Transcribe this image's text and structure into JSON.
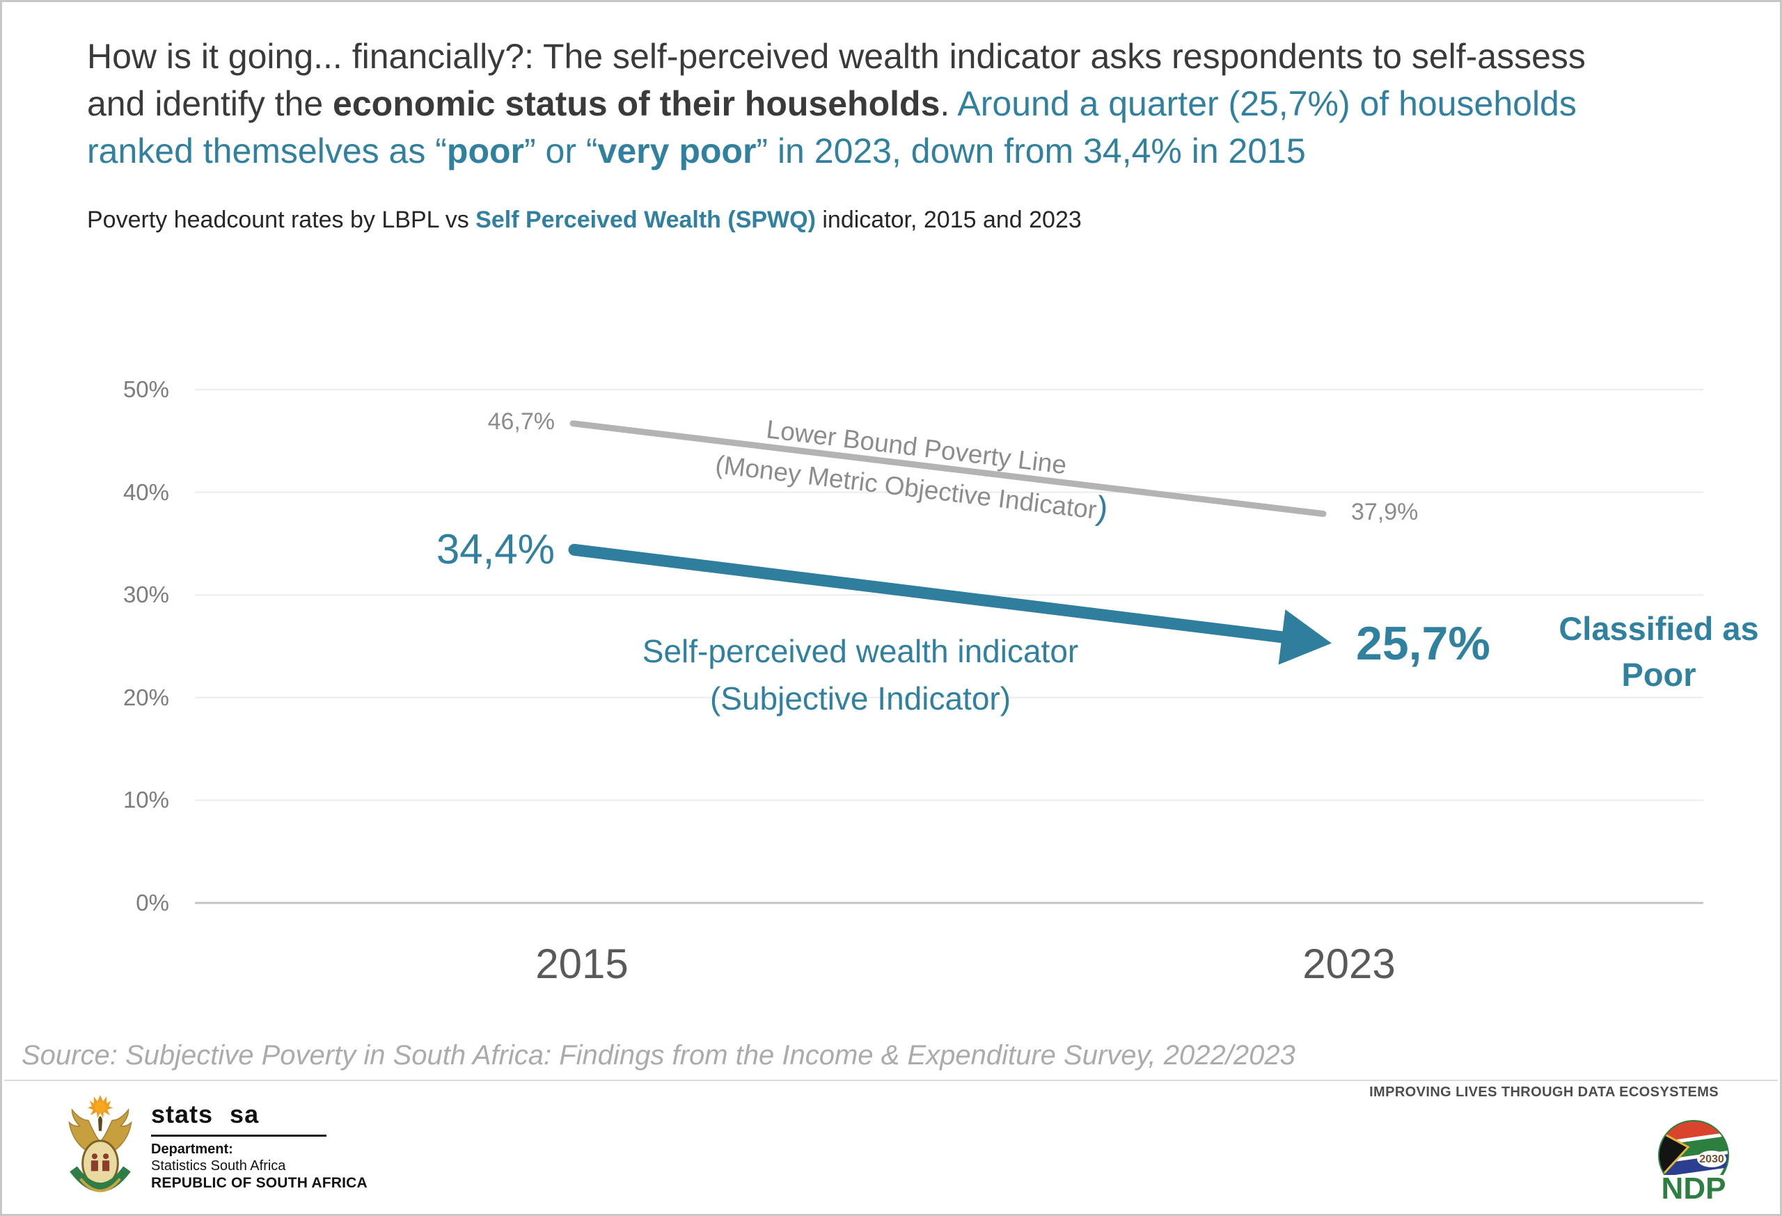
{
  "title": {
    "line1": "How is it going... financially?: The self-perceived wealth indicator asks respondents to self-assess",
    "line2_part1": "and identify the ",
    "line2_bold": "economic status of their households",
    "line2_part2": ". ",
    "line2_teal": "Around a quarter (25,7%) of households",
    "line3_part1": "ranked themselves as “",
    "line3_bold1": "poor",
    "line3_part2": "” or “",
    "line3_bold2": "very poor",
    "line3_part3": "” in 2023, down from 34,4% in 2015"
  },
  "subtitle": {
    "part1": "Poverty headcount rates by LBPL vs ",
    "bold_teal": "Self Perceived Wealth (SPWQ)",
    "part2": " indicator, 2015 and 2023"
  },
  "chart_data": {
    "type": "line",
    "title": "Poverty headcount rates by LBPL vs Self Perceived Wealth (SPWQ) indicator, 2015 and 2023",
    "categories": [
      "2015",
      "2023"
    ],
    "series": [
      {
        "name": "Lower Bound Poverty Line (Money Metric Objective Indicator)",
        "values": [
          46.7,
          37.9
        ],
        "color": "#b3b3b3",
        "data_labels": [
          "46,7%",
          "37,9%"
        ]
      },
      {
        "name": "Self-perceived wealth indicator (Subjective Indicator)",
        "values": [
          34.4,
          25.7
        ],
        "color": "#2f7e9d",
        "data_labels": [
          "34,4%",
          "25,7%"
        ]
      }
    ],
    "ylim": [
      0,
      50
    ],
    "yticks": [
      {
        "value": 0,
        "label": "0%"
      },
      {
        "value": 10,
        "label": "10%"
      },
      {
        "value": 20,
        "label": "20%"
      },
      {
        "value": 30,
        "label": "30%"
      },
      {
        "value": 40,
        "label": "40%"
      },
      {
        "value": 50,
        "label": "50%"
      }
    ],
    "grid": true,
    "legend": "inline-labels",
    "annotation": "Classified as Poor"
  },
  "chart_labels": {
    "lbpl_2015": "46,7%",
    "lbpl_2023": "37,9%",
    "spw_2015": "34,4%",
    "spw_2023": "25,7%",
    "lbpl_note_line1": "Lower Bound Poverty Line",
    "lbpl_note_line2": "(Money Metric Objective Indicator",
    "lbpl_note_paren": ")",
    "spw_note_line1": "Self-perceived wealth indicator",
    "spw_note_line2": "(Subjective Indicator)",
    "classified_line1": "Classified as",
    "classified_line2": "Poor"
  },
  "source": "Source: Subjective Poverty in South Africa: Findings from the Income & Expenditure Survey, 2022/2023",
  "footer": {
    "stats_sa": {
      "word1": "stats",
      "word2": "sa",
      "dept_line1": "Department:",
      "dept_line2": "Statistics South Africa",
      "dept_line3": "REPUBLIC OF SOUTH AFRICA"
    },
    "tagline": "IMPROVING LIVES THROUGH DATA ECOSYSTEMS",
    "ndp": {
      "year": "2030",
      "name": "NDP"
    }
  },
  "colors": {
    "teal": "#30809f",
    "arrow_teal": "#2f7e9d",
    "gray_line": "#b3b3b3",
    "text_dark": "#3a3a3a",
    "axis_text": "#7c7c7c",
    "year_text": "#595959",
    "source_text": "#ababab"
  }
}
